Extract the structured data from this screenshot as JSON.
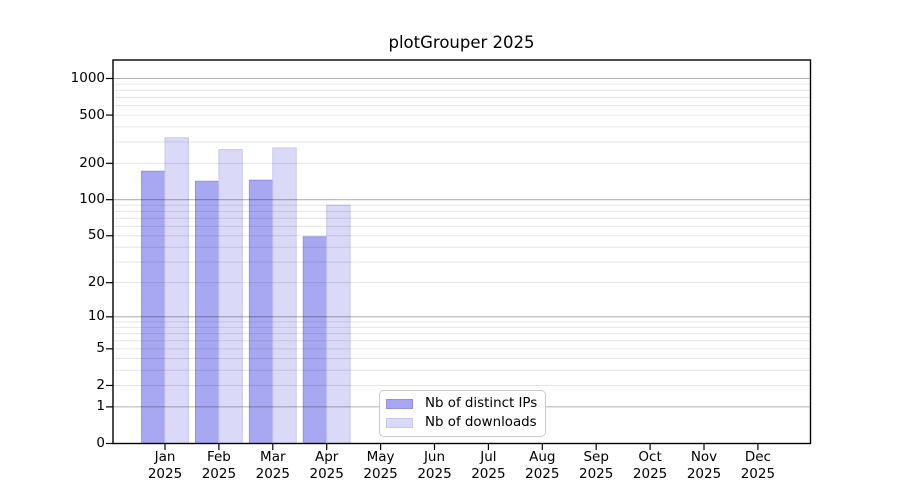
{
  "chart_data": {
    "type": "bar",
    "title": "plotGrouper 2025",
    "categories": [
      "Jan",
      "Feb",
      "Mar",
      "Apr",
      "May",
      "Jun",
      "Jul",
      "Aug",
      "Sep",
      "Oct",
      "Nov",
      "Dec"
    ],
    "year_label": "2025",
    "series": [
      {
        "name": "Nb of distinct IPs",
        "color": "#a8a8f2",
        "edge_color": "#9191e2",
        "values": [
          172,
          142,
          145,
          49,
          0,
          0,
          0,
          0,
          0,
          0,
          0,
          0
        ]
      },
      {
        "name": "Nb of downloads",
        "color": "#dadaf8",
        "edge_color": "#c7c7f0",
        "values": [
          325,
          260,
          268,
          90,
          0,
          0,
          0,
          0,
          0,
          0,
          0,
          0
        ]
      }
    ],
    "y_ticks": [
      0,
      1,
      2,
      5,
      10,
      20,
      50,
      100,
      200,
      500,
      1000
    ],
    "y_scale": "log10(1+y)",
    "ylim": [
      0,
      1420
    ],
    "grid": {
      "major_at": [
        1,
        10,
        100,
        1000
      ],
      "major_color": "#b3b3b3",
      "minor_color": "#e5e5e5",
      "grid_on": true
    },
    "legend_position": "lower center",
    "axis_color": "#000000",
    "background": "#ffffff"
  }
}
